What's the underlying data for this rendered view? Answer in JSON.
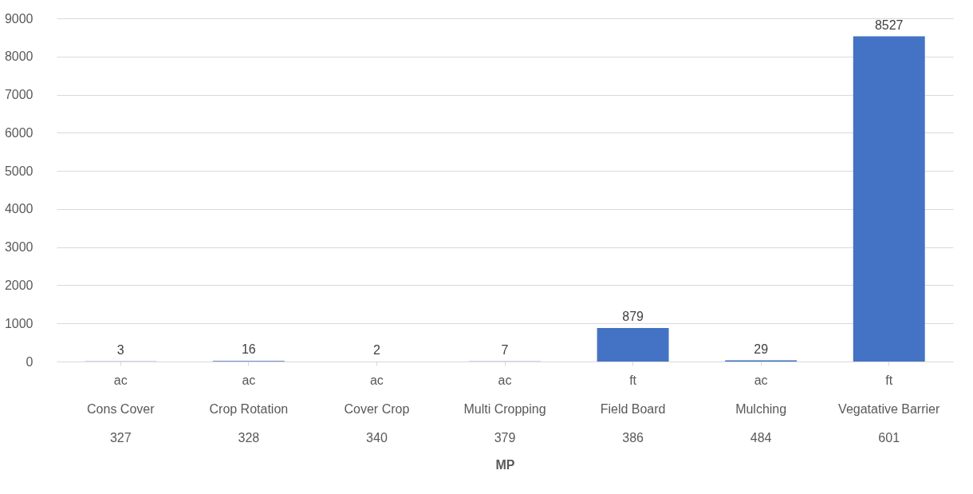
{
  "chart_data": {
    "type": "bar",
    "xlabel": "MP",
    "categories": [
      "ac\nCons Cover\n327",
      "ac\nCrop Rotation\n328",
      "ac\nCover Crop\n340",
      "ac\nMulti Cropping\n379",
      "ft\nField Board\n386",
      "ac\nMulching\n484",
      "ft\nVegatative Barrier\n601"
    ],
    "values": [
      3,
      16,
      2,
      7,
      879,
      29,
      8527
    ],
    "color": "#4472c4",
    "data_labels": true,
    "grid": "y",
    "ylim": [
      0,
      9000
    ],
    "yticks": [
      0,
      1000,
      2000,
      3000,
      4000,
      5000,
      6000,
      7000,
      8000,
      9000
    ]
  }
}
